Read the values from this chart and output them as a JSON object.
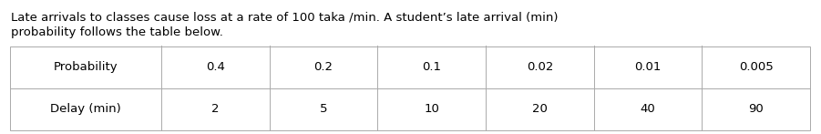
{
  "description_line1": "Late arrivals to classes cause loss at a rate of 100 taka /min. A student’s late arrival (min)",
  "description_line2": "probability follows the table below.",
  "row1_header": "Probability",
  "row2_header": "Delay (min)",
  "probabilities": [
    "0.4",
    "0.2",
    "0.1",
    "0.02",
    "0.01",
    "0.005"
  ],
  "delays": [
    "2",
    "5",
    "10",
    "20",
    "40",
    "90"
  ],
  "bg_color": "#ffffff",
  "text_color": "#000000",
  "table_border_color": "#aaaaaa",
  "font_size_text": 9.5,
  "font_size_table": 9.5,
  "fig_width": 9.01,
  "fig_height": 1.47,
  "col_widths_rel": [
    1.4,
    1.0,
    1.0,
    1.0,
    1.0,
    1.0,
    1.0
  ]
}
